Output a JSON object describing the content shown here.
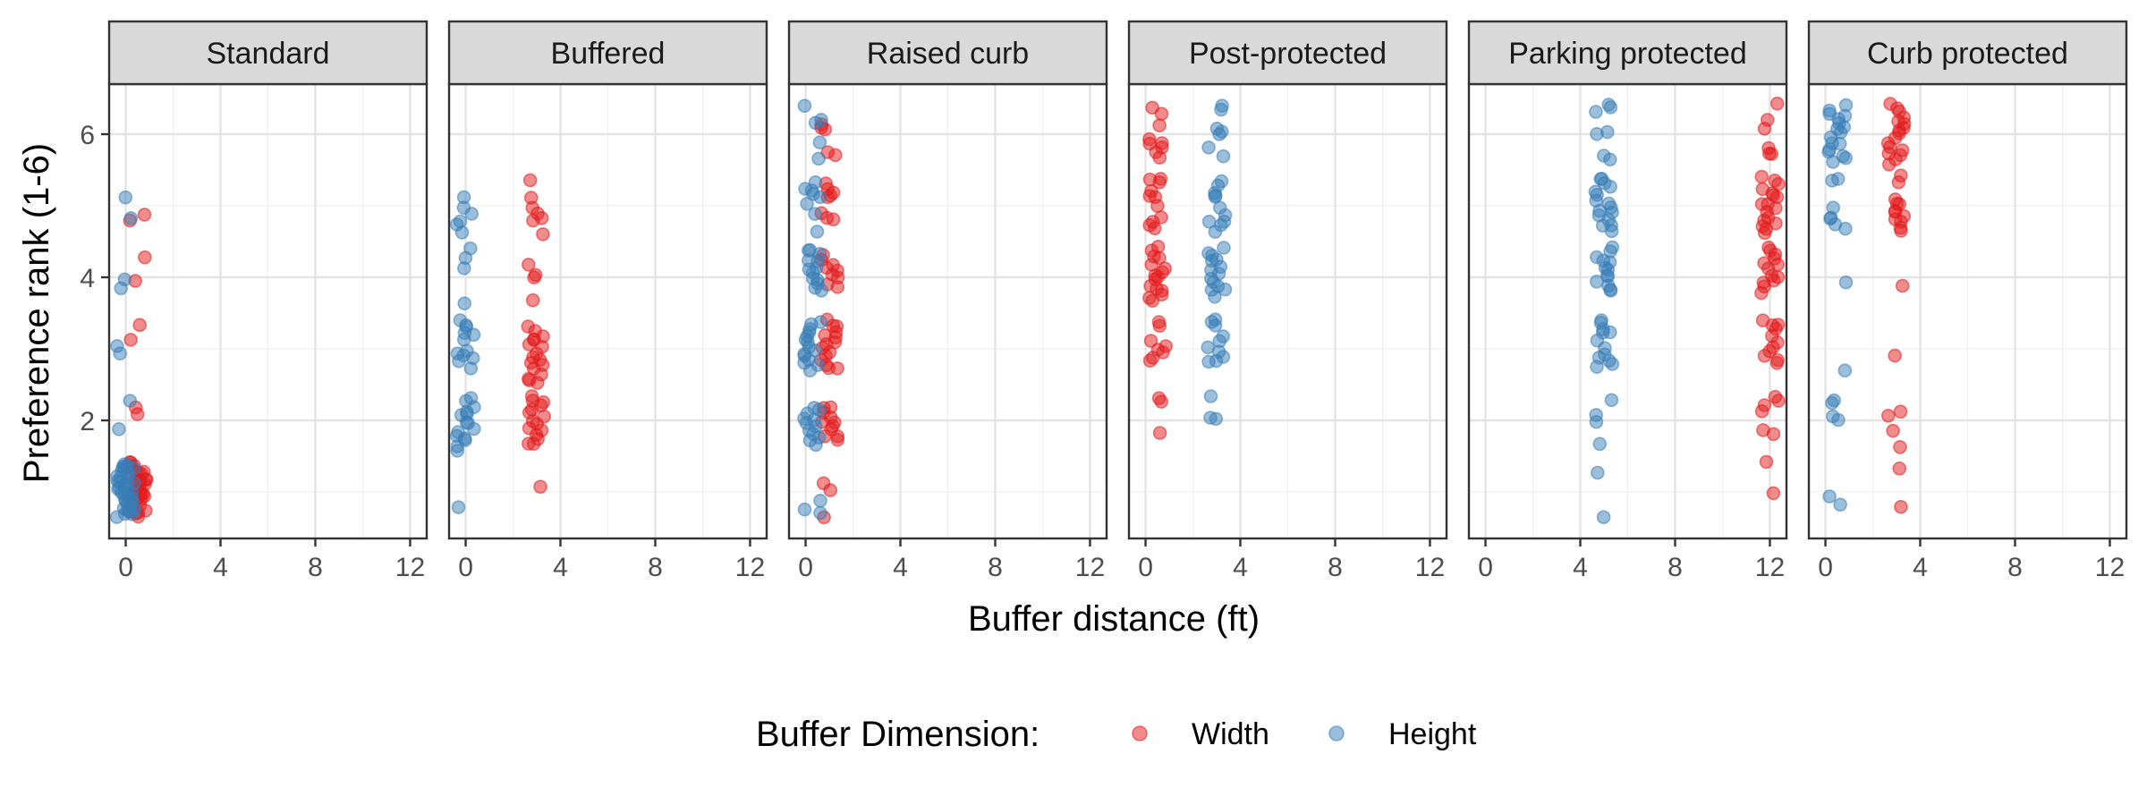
{
  "chart_data": {
    "type": "scatter",
    "xlabel": "Buffer distance (ft)",
    "ylabel": "Preference rank (1-6)",
    "xlim": [
      -0.7,
      12.7
    ],
    "ylim": [
      0.35,
      6.7
    ],
    "x_ticks": [
      0,
      4,
      8,
      12
    ],
    "y_ticks": [
      2,
      4,
      6
    ],
    "grid": true,
    "legend": {
      "title": "Buffer Dimension:",
      "position": "bottom",
      "entries": [
        {
          "name": "Width",
          "color": "#E41A1C"
        },
        {
          "name": "Height",
          "color": "#377EB8"
        }
      ]
    },
    "colors": {
      "Width": "#E41A1C",
      "Height": "#377EB8"
    },
    "panels": [
      {
        "title": "Standard",
        "series": [
          {
            "name": "Width",
            "x_center": 0.5,
            "values": [
              4.85,
              4.8,
              4.3,
              3.95,
              3.35,
              3.1,
              2.2,
              2.1,
              1.4,
              1.38,
              1.35,
              1.32,
              1.3,
              1.28,
              1.25,
              1.22,
              1.2,
              1.18,
              1.15,
              1.12,
              1.1,
              1.08,
              1.05,
              1.02,
              1.0,
              0.98,
              0.95,
              0.92,
              0.9,
              0.88,
              0.85,
              0.82,
              0.8,
              0.78,
              0.75,
              0.72,
              0.7,
              0.68,
              0.66,
              1.4,
              1.3,
              1.2,
              1.1,
              1.0,
              0.9,
              0.8,
              0.7
            ]
          },
          {
            "name": "Height",
            "x_center": 0.0,
            "values": [
              5.1,
              4.85,
              4.0,
              3.85,
              3.05,
              2.95,
              2.3,
              1.85,
              1.4,
              1.38,
              1.35,
              1.32,
              1.3,
              1.28,
              1.25,
              1.22,
              1.2,
              1.18,
              1.15,
              1.12,
              1.1,
              1.08,
              1.05,
              1.02,
              1.0,
              0.98,
              0.95,
              0.92,
              0.9,
              0.88,
              0.85,
              0.82,
              0.8,
              0.78,
              0.75,
              0.72,
              0.7,
              0.68,
              0.66,
              1.36,
              1.26,
              1.16,
              1.06,
              0.96,
              0.86,
              0.76
            ]
          }
        ]
      },
      {
        "title": "Buffered",
        "series": [
          {
            "name": "Width",
            "x_center": 3.0,
            "values": [
              5.35,
              5.1,
              4.95,
              4.9,
              4.85,
              4.8,
              4.6,
              4.2,
              4.05,
              4.0,
              3.65,
              3.3,
              3.25,
              3.2,
              3.15,
              3.1,
              3.05,
              3.0,
              2.95,
              2.9,
              2.85,
              2.8,
              2.75,
              2.7,
              2.65,
              2.6,
              2.55,
              2.5,
              2.35,
              2.3,
              2.25,
              2.2,
              2.15,
              2.1,
              2.05,
              2.0,
              1.95,
              1.9,
              1.85,
              1.8,
              1.75,
              1.7,
              1.65,
              1.05
            ]
          },
          {
            "name": "Height",
            "x_center": 0.0,
            "values": [
              5.1,
              5.0,
              4.9,
              4.8,
              4.75,
              4.6,
              4.4,
              4.3,
              4.15,
              3.65,
              3.4,
              3.35,
              3.3,
              3.25,
              3.2,
              3.1,
              3.0,
              2.95,
              2.9,
              2.85,
              2.8,
              2.7,
              2.3,
              2.25,
              2.2,
              2.15,
              2.1,
              2.05,
              2.0,
              1.95,
              1.9,
              1.85,
              1.8,
              1.75,
              1.7,
              1.65,
              1.6,
              0.8
            ]
          }
        ]
      },
      {
        "title": "Raised curb",
        "series": [
          {
            "name": "Width",
            "x_center": 1.0,
            "values": [
              6.15,
              6.1,
              6.05,
              5.75,
              5.7,
              5.3,
              5.25,
              5.2,
              5.15,
              5.1,
              4.9,
              4.85,
              4.8,
              4.3,
              4.25,
              4.2,
              4.15,
              4.1,
              4.05,
              4.0,
              3.9,
              3.85,
              3.4,
              3.35,
              3.3,
              3.25,
              3.2,
              3.15,
              3.1,
              3.05,
              3.0,
              2.95,
              2.9,
              2.85,
              2.8,
              2.75,
              2.7,
              2.2,
              2.15,
              2.1,
              2.05,
              2.0,
              1.95,
              1.9,
              1.85,
              1.8,
              1.75,
              1.7,
              1.12,
              1.05,
              0.65
            ]
          },
          {
            "name": "Height",
            "x_center": 0.3,
            "values": [
              6.4,
              6.2,
              6.15,
              5.9,
              5.65,
              5.3,
              5.25,
              5.2,
              5.15,
              5.1,
              5.05,
              4.9,
              4.65,
              4.4,
              4.35,
              4.3,
              4.25,
              4.2,
              4.15,
              4.1,
              4.05,
              4.0,
              3.95,
              3.9,
              3.85,
              3.8,
              3.4,
              3.35,
              3.3,
              3.25,
              3.2,
              3.15,
              3.1,
              3.05,
              3.0,
              2.95,
              2.9,
              2.85,
              2.8,
              2.75,
              2.7,
              2.2,
              2.15,
              2.1,
              2.05,
              2.0,
              1.95,
              1.9,
              1.85,
              1.8,
              1.75,
              1.7,
              1.65,
              0.85,
              0.75,
              0.68
            ]
          }
        ]
      },
      {
        "title": "Post-protected",
        "series": [
          {
            "name": "Width",
            "x_center": 0.5,
            "values": [
              6.4,
              6.3,
              6.1,
              5.95,
              5.9,
              5.85,
              5.8,
              5.75,
              5.7,
              5.4,
              5.35,
              5.3,
              5.2,
              5.15,
              5.1,
              5.0,
              4.85,
              4.8,
              4.75,
              4.7,
              4.4,
              4.35,
              4.3,
              4.25,
              4.2,
              4.15,
              4.1,
              4.05,
              4.0,
              3.95,
              3.9,
              3.85,
              3.8,
              3.75,
              3.7,
              3.65,
              3.35,
              3.3,
              3.1,
              3.05,
              3.0,
              2.95,
              2.9,
              2.85,
              2.3,
              2.25,
              1.85
            ]
          },
          {
            "name": "Height",
            "x_center": 3.0,
            "values": [
              6.4,
              6.35,
              6.1,
              6.05,
              6.0,
              5.8,
              5.7,
              5.35,
              5.3,
              5.2,
              5.15,
              5.1,
              4.95,
              4.85,
              4.8,
              4.75,
              4.7,
              4.65,
              4.4,
              4.35,
              4.3,
              4.25,
              4.2,
              4.15,
              4.1,
              4.05,
              4.0,
              3.95,
              3.9,
              3.85,
              3.8,
              3.75,
              3.4,
              3.35,
              3.3,
              3.2,
              3.1,
              3.0,
              2.95,
              2.9,
              2.85,
              2.8,
              2.35,
              2.05,
              2.0
            ]
          }
        ]
      },
      {
        "title": "Parking protected",
        "series": [
          {
            "name": "Width",
            "x_center": 12.0,
            "values": [
              6.4,
              6.2,
              6.1,
              5.8,
              5.75,
              5.7,
              5.4,
              5.35,
              5.3,
              5.25,
              5.2,
              5.15,
              5.1,
              5.05,
              5.0,
              4.95,
              4.9,
              4.85,
              4.8,
              4.75,
              4.7,
              4.65,
              4.6,
              4.4,
              4.35,
              4.3,
              4.25,
              4.2,
              4.15,
              4.1,
              4.05,
              4.0,
              3.95,
              3.9,
              3.85,
              3.8,
              3.4,
              3.35,
              3.3,
              3.25,
              3.2,
              3.1,
              3.0,
              2.95,
              2.9,
              2.85,
              2.8,
              2.3,
              2.25,
              2.2,
              2.1,
              1.85,
              1.8,
              1.4,
              1.0
            ]
          },
          {
            "name": "Height",
            "x_center": 5.0,
            "values": [
              6.4,
              6.35,
              6.3,
              6.05,
              6.0,
              5.7,
              5.65,
              5.4,
              5.35,
              5.3,
              5.25,
              5.2,
              5.15,
              5.1,
              5.05,
              5.0,
              4.95,
              4.9,
              4.85,
              4.8,
              4.75,
              4.7,
              4.65,
              4.4,
              4.35,
              4.3,
              4.25,
              4.2,
              4.15,
              4.1,
              4.05,
              4.0,
              3.95,
              3.9,
              3.85,
              3.8,
              3.4,
              3.35,
              3.3,
              3.25,
              3.2,
              3.1,
              3.0,
              2.95,
              2.9,
              2.85,
              2.8,
              2.75,
              2.3,
              2.1,
              2.0,
              1.7,
              1.25,
              0.65
            ]
          }
        ]
      },
      {
        "title": "Curb protected",
        "series": [
          {
            "name": "Width",
            "x_center": 3.0,
            "values": [
              6.4,
              6.35,
              6.3,
              6.25,
              6.2,
              6.15,
              6.1,
              6.05,
              6.0,
              5.95,
              5.9,
              5.85,
              5.8,
              5.75,
              5.7,
              5.65,
              5.6,
              5.4,
              5.3,
              5.1,
              5.05,
              5.0,
              4.95,
              4.9,
              4.85,
              4.8,
              4.75,
              4.7,
              4.65,
              3.9,
              2.9,
              2.1,
              2.05,
              1.85,
              1.65,
              1.3,
              0.78
            ]
          },
          {
            "name": "Height",
            "x_center": 0.5,
            "values": [
              6.4,
              6.35,
              6.3,
              6.25,
              6.2,
              6.15,
              6.1,
              6.05,
              6.0,
              5.95,
              5.9,
              5.85,
              5.8,
              5.75,
              5.7,
              5.65,
              5.6,
              5.4,
              5.35,
              4.95,
              4.85,
              4.8,
              4.75,
              4.7,
              3.9,
              2.7,
              2.3,
              2.25,
              2.05,
              2.0,
              0.95,
              0.85
            ]
          }
        ]
      }
    ]
  }
}
